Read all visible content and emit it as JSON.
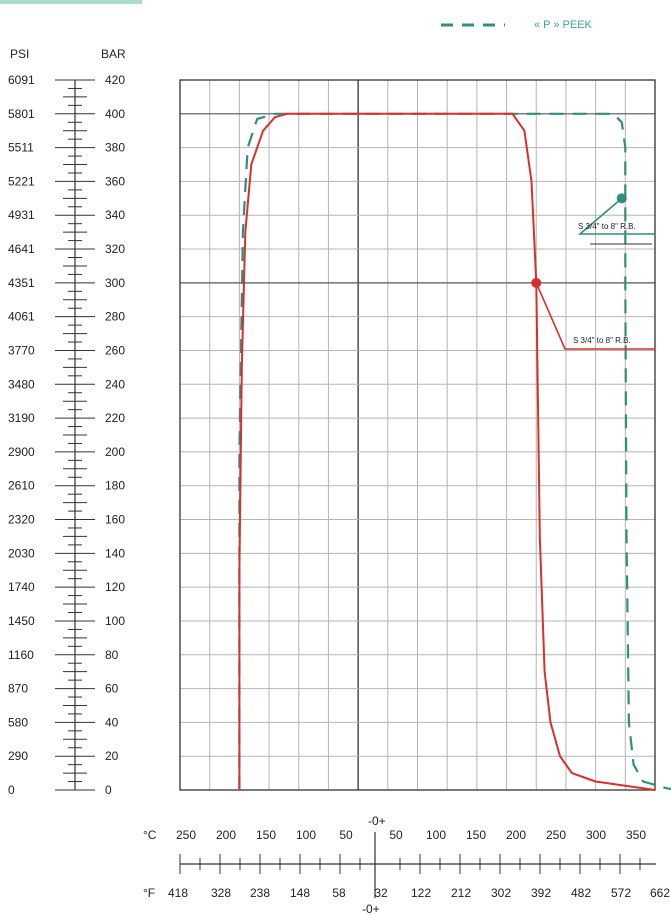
{
  "chart_data": {
    "type": "line",
    "legend": {
      "label": "« P »  PEEK",
      "color": "#2f8f7f",
      "placement": "top-right"
    },
    "left_axis": {
      "psi_header": "PSI",
      "bar_header": "BAR",
      "psi_labels": [
        "6091",
        "5801",
        "5511",
        "5221",
        "4931",
        "4641",
        "4351",
        "4061",
        "3770",
        "3480",
        "3190",
        "2900",
        "2610",
        "2320",
        "2030",
        "1740",
        "1450",
        "1160",
        "870",
        "580",
        "290",
        "0"
      ],
      "bar_labels": [
        "420",
        "400",
        "380",
        "360",
        "340",
        "320",
        "300",
        "280",
        "260",
        "240",
        "220",
        "200",
        "180",
        "160",
        "140",
        "120",
        "100",
        "80",
        "60",
        "40",
        "20",
        "0"
      ]
    },
    "ylim": [
      0,
      420
    ],
    "xlim": [
      -150,
      250
    ],
    "grid": true,
    "bottom_axis": {
      "c_unit": "°C",
      "f_unit": "°F",
      "zero_label": "-0+",
      "c_labels": [
        "250",
        "200",
        "150",
        "100",
        "50",
        "50",
        "100",
        "150",
        "200",
        "250",
        "300",
        "350"
      ],
      "f_labels": [
        "418",
        "328",
        "238",
        "148",
        "58",
        "32",
        "122",
        "212",
        "302",
        "392",
        "482",
        "572",
        "662"
      ]
    },
    "series": [
      {
        "color": "#2f8f7f",
        "style": "dashed",
        "annotation": "S 3/4\" to 8\" R.B.",
        "marker": [
          222,
          350
        ],
        "points": [
          [
            -100,
            0
          ],
          [
            -100,
            200
          ],
          [
            -97,
            330
          ],
          [
            -93,
            380
          ],
          [
            -85,
            397
          ],
          [
            -70,
            400
          ],
          [
            -40,
            400
          ],
          [
            0,
            400
          ],
          [
            100,
            400
          ],
          [
            170,
            400
          ],
          [
            215,
            400
          ],
          [
            222,
            395
          ],
          [
            225,
            380
          ],
          [
            225,
            300
          ],
          [
            226,
            150
          ],
          [
            228,
            40
          ],
          [
            232,
            15
          ],
          [
            240,
            5
          ],
          [
            260,
            1
          ],
          [
            270,
            0
          ]
        ]
      },
      {
        "color": "#d9302c",
        "style": "solid",
        "annotation": "S 3/4\" to 8\" R.B.",
        "marker": [
          150,
          300
        ],
        "points": [
          [
            -100,
            0
          ],
          [
            -100,
            130
          ],
          [
            -98,
            250
          ],
          [
            -95,
            330
          ],
          [
            -90,
            370
          ],
          [
            -80,
            390
          ],
          [
            -70,
            398
          ],
          [
            -60,
            400
          ],
          [
            0,
            400
          ],
          [
            100,
            400
          ],
          [
            130,
            400
          ],
          [
            140,
            390
          ],
          [
            146,
            360
          ],
          [
            150,
            300
          ],
          [
            153,
            150
          ],
          [
            157,
            70
          ],
          [
            162,
            40
          ],
          [
            170,
            20
          ],
          [
            180,
            10
          ],
          [
            200,
            5
          ],
          [
            230,
            2
          ],
          [
            250,
            0
          ]
        ]
      }
    ]
  }
}
